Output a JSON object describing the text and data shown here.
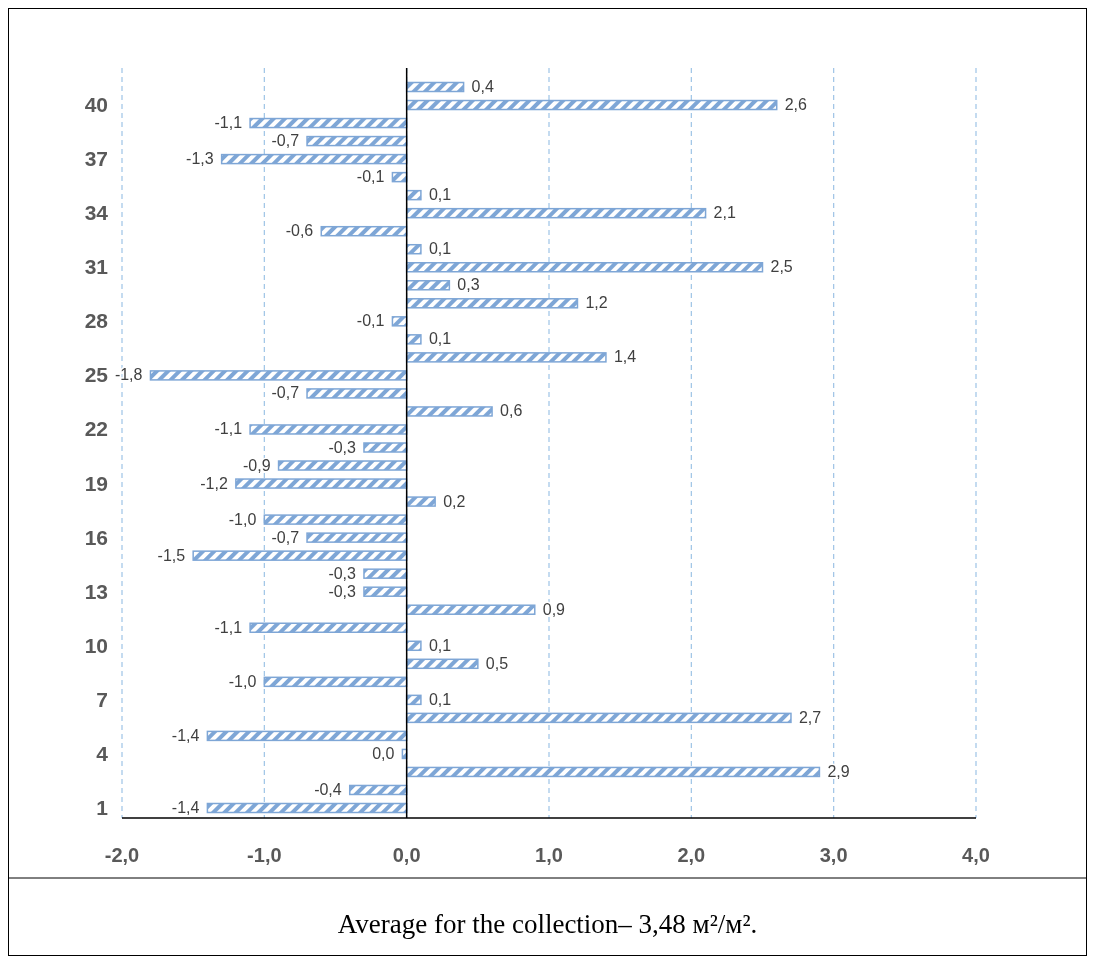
{
  "chart_data": {
    "type": "bar",
    "orientation": "horizontal",
    "categories": [
      null,
      "40",
      null,
      null,
      "37",
      null,
      null,
      "34",
      null,
      null,
      "31",
      null,
      null,
      "28",
      null,
      null,
      "25",
      null,
      null,
      "22",
      null,
      null,
      "19",
      null,
      null,
      "16",
      null,
      null,
      "13",
      null,
      null,
      "10",
      null,
      null,
      "7",
      null,
      null,
      "4",
      null,
      null,
      "1"
    ],
    "values": [
      0.4,
      2.6,
      -1.1,
      -0.7,
      -1.3,
      -0.1,
      0.1,
      2.1,
      -0.6,
      0.1,
      2.5,
      0.3,
      1.2,
      -0.1,
      0.1,
      1.4,
      -1.8,
      -0.7,
      0.6,
      -1.1,
      -0.3,
      -0.9,
      -1.2,
      0.2,
      -1.0,
      -0.7,
      -1.5,
      -0.3,
      -0.3,
      0.9,
      -1.1,
      0.1,
      0.5,
      -1.0,
      0.1,
      2.7,
      -1.4,
      -0.03,
      2.9,
      -0.4,
      -1.4
    ],
    "value_labels": [
      "0,4",
      "2,6",
      "-1,1",
      "-0,7",
      "-1,3",
      "-0,1",
      "0,1",
      "2,1",
      "-0,6",
      "0,1",
      "2,5",
      "0,3",
      "1,2",
      "-0,1",
      "0,1",
      "1,4",
      "-1,8",
      "-0,7",
      "0,6",
      "-1,1",
      "-0,3",
      "-0,9",
      "-1,2",
      "0,2",
      "-1,0",
      "-0,7",
      "-1,5",
      "-0,3",
      "-0,3",
      "0,9",
      "-1,1",
      "0,1",
      "0,5",
      "-1,0",
      "0,1",
      "2,7",
      "-1,4",
      "0,0",
      "2,9",
      "-0,4",
      "-1,4"
    ],
    "color": "#7ea6d6",
    "xlim": [
      -2,
      4
    ],
    "xticks": [
      {
        "value": -2,
        "label": "-2,0"
      },
      {
        "value": -1,
        "label": "-1,0"
      },
      {
        "value": 0,
        "label": "0,0"
      },
      {
        "value": 1,
        "label": "1,0"
      },
      {
        "value": 2,
        "label": "2,0"
      },
      {
        "value": 3,
        "label": "3,0"
      },
      {
        "value": 4,
        "label": "4,0"
      }
    ],
    "grid": "x",
    "annotations": [
      "Average for the collection– 3,48 м²/м²."
    ]
  }
}
